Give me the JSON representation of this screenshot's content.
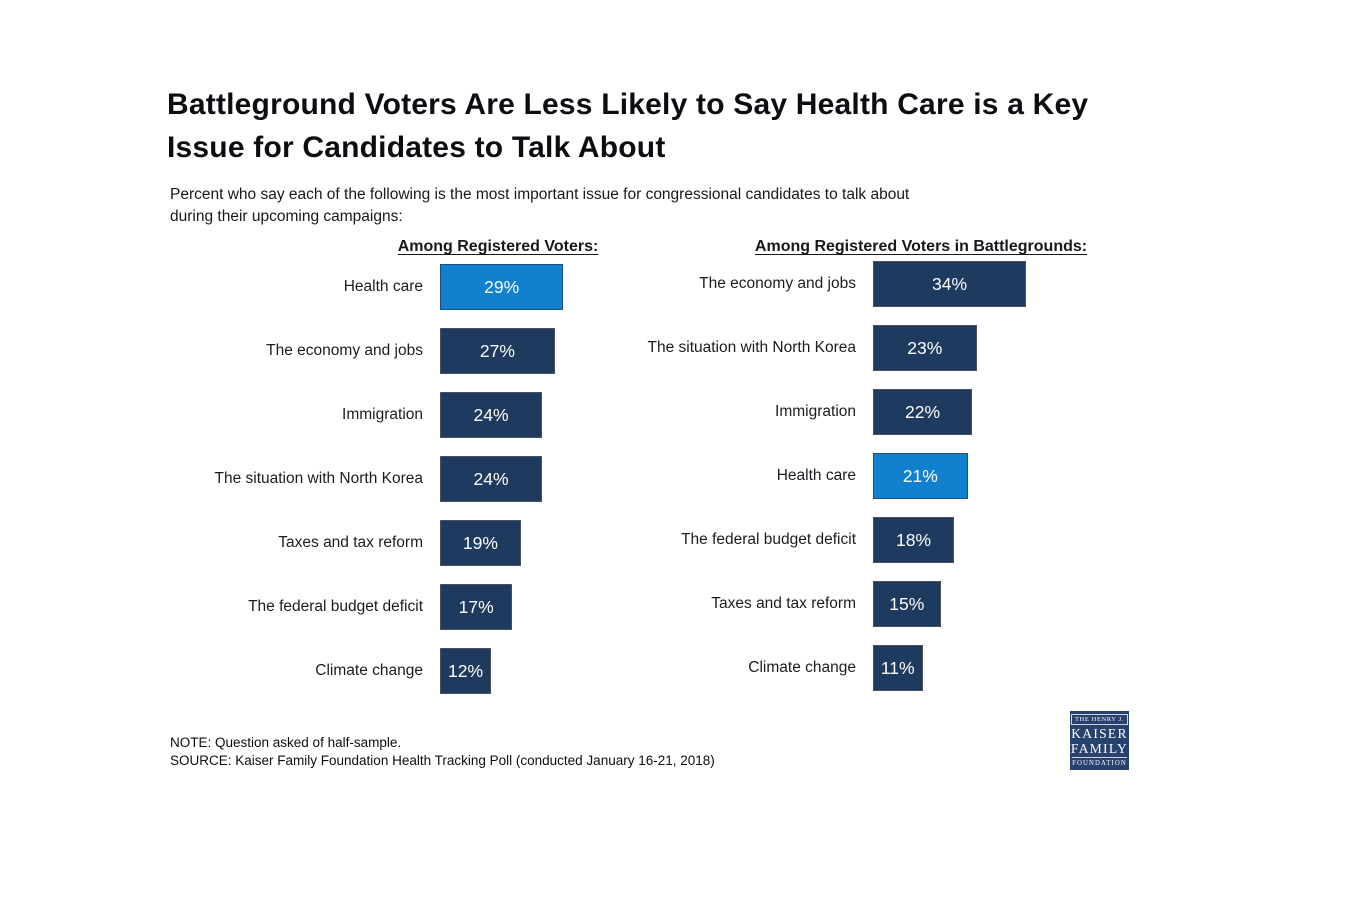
{
  "page": {
    "background": "#ffffff"
  },
  "title": "Battleground Voters Are Less Likely to Say Health Care is a Key\nIssue for Candidates to Talk About",
  "subtitle": "Percent who say each of the following is the most important issue for congressional candidates to talk about\nduring their upcoming campaigns:",
  "notes": {
    "note": "NOTE: Question asked of half-sample.",
    "source": "SOURCE: Kaiser Family Foundation Health Tracking Poll (conducted January 16-21, 2018)"
  },
  "logo": {
    "line1": "THE HENRY J.",
    "line2": "KAISER",
    "line3": "FAMILY",
    "line4": "FOUNDATION",
    "background": "#27426e"
  },
  "colors": {
    "bar": "#1e3a5f",
    "highlight": "#1180cf",
    "bar_text": "#ffffff",
    "title_text": "#0b0d12"
  },
  "chart_data": [
    {
      "type": "bar",
      "orientation": "horizontal",
      "title": "Among Registered Voters:",
      "categories": [
        "Health care",
        "The economy and jobs",
        "Immigration",
        "The situation with North Korea",
        "Taxes and tax reform",
        "The federal budget deficit",
        "Climate change"
      ],
      "values": [
        29,
        27,
        24,
        24,
        19,
        17,
        12
      ],
      "value_labels": [
        "29%",
        "27%",
        "24%",
        "24%",
        "19%",
        "17%",
        "12%"
      ],
      "highlighted_category": "Health care",
      "bar_color": "#1e3a5f",
      "highlight_color": "#1180cf",
      "value_label_position": "inside-center",
      "xlim": [
        0,
        40
      ],
      "grid": false,
      "legend": false
    },
    {
      "type": "bar",
      "orientation": "horizontal",
      "title": "Among Registered Voters in Battlegrounds:",
      "categories": [
        "The economy and jobs",
        "The situation with North Korea",
        "Immigration",
        "Health care",
        "The federal budget deficit",
        "Taxes and tax reform",
        "Climate change"
      ],
      "values": [
        34,
        23,
        22,
        21,
        18,
        15,
        11
      ],
      "value_labels": [
        "34%",
        "23%",
        "22%",
        "21%",
        "18%",
        "15%",
        "11%"
      ],
      "highlighted_category": "Health care",
      "bar_color": "#1e3a5f",
      "highlight_color": "#1180cf",
      "value_label_position": "inside-center",
      "xlim": [
        0,
        40
      ],
      "grid": false,
      "legend": false
    }
  ]
}
